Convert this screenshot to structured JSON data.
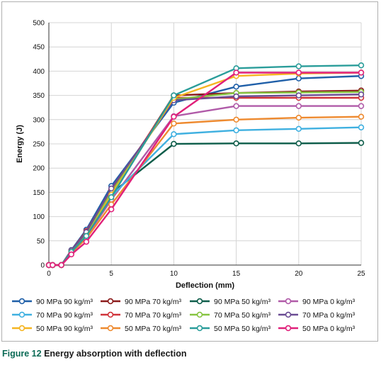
{
  "caption": {
    "label": "Figure 12",
    "text": "Energy absorption with deflection"
  },
  "chart_data": {
    "type": "line",
    "xlabel": "Deflection (mm)",
    "ylabel": "Energy (J)",
    "xlim": [
      0,
      25
    ],
    "ylim": [
      0,
      500
    ],
    "xticks": [
      0,
      5,
      10,
      15,
      20,
      25
    ],
    "yticks": [
      0,
      50,
      100,
      150,
      200,
      250,
      300,
      350,
      400,
      450,
      500
    ],
    "grid": true,
    "legend_position": "bottom",
    "series": [
      {
        "name": "90 MPa 90 kg/m³",
        "color": "#1f5fa8",
        "x": [
          0,
          0.3,
          1,
          1.8,
          3,
          5,
          10,
          15,
          20,
          25
        ],
        "y": [
          0,
          0,
          0,
          31,
          73,
          163,
          335,
          368,
          385,
          390
        ]
      },
      {
        "name": "90 MPa 70 kg/m³",
        "color": "#8b1a1a",
        "x": [
          0,
          0.3,
          1,
          1.8,
          3,
          5,
          10,
          15,
          20,
          25
        ],
        "y": [
          0,
          0,
          0,
          30,
          65,
          148,
          350,
          355,
          358,
          360
        ]
      },
      {
        "name": "90 MPa 50 kg/m³",
        "color": "#0d5d4a",
        "x": [
          0,
          0.3,
          1,
          1.8,
          3,
          5,
          10,
          15,
          20,
          25
        ],
        "y": [
          0,
          0,
          0,
          29,
          67,
          148,
          250,
          251,
          251,
          252
        ]
      },
      {
        "name": "90 MPa 0 kg/m³",
        "color": "#b05aa8",
        "x": [
          0,
          0.3,
          1,
          1.8,
          3,
          5,
          10,
          15,
          20,
          25
        ],
        "y": [
          0,
          0,
          0,
          26,
          58,
          135,
          307,
          328,
          328,
          328
        ]
      },
      {
        "name": "70 MPa 90 kg/m³",
        "color": "#3fb0e0",
        "x": [
          0,
          0.3,
          1,
          1.8,
          3,
          5,
          10,
          15,
          20,
          25
        ],
        "y": [
          0,
          0,
          0,
          28,
          62,
          142,
          270,
          278,
          281,
          284
        ]
      },
      {
        "name": "70 MPa 70 kg/m³",
        "color": "#d0343a",
        "x": [
          0,
          0.3,
          1,
          1.8,
          3,
          5,
          10,
          15,
          20,
          25
        ],
        "y": [
          0,
          0,
          0,
          30,
          70,
          155,
          345,
          345,
          345,
          345
        ]
      },
      {
        "name": "70 MPa 50 kg/m³",
        "color": "#86c440",
        "x": [
          0,
          0.3,
          1,
          1.8,
          3,
          5,
          10,
          15,
          20,
          25
        ],
        "y": [
          0,
          0,
          0,
          29,
          64,
          150,
          342,
          355,
          356,
          357
        ]
      },
      {
        "name": "70 MPa 0 kg/m³",
        "color": "#6a4c93",
        "x": [
          0,
          0.3,
          1,
          1.8,
          3,
          5,
          10,
          15,
          20,
          25
        ],
        "y": [
          0,
          0,
          0,
          30,
          68,
          158,
          340,
          348,
          350,
          352
        ]
      },
      {
        "name": "50 MPa 90 kg/m³",
        "color": "#f5b521",
        "x": [
          0,
          0.3,
          1,
          1.8,
          3,
          5,
          10,
          15,
          20,
          25
        ],
        "y": [
          0,
          0,
          0,
          27,
          60,
          145,
          345,
          390,
          395,
          397
        ]
      },
      {
        "name": "50 MPa 70 kg/m³",
        "color": "#ee8a2f",
        "x": [
          0,
          0.3,
          1,
          1.8,
          3,
          5,
          10,
          15,
          20,
          25
        ],
        "y": [
          0,
          0,
          0,
          25,
          55,
          125,
          292,
          300,
          304,
          306
        ]
      },
      {
        "name": "50 MPa 50 kg/m³",
        "color": "#2a9d9a",
        "x": [
          0,
          0.3,
          1,
          1.8,
          3,
          5,
          10,
          15,
          20,
          25
        ],
        "y": [
          0,
          0,
          0,
          27,
          60,
          140,
          350,
          406,
          410,
          412
        ]
      },
      {
        "name": "50 MPa 0 kg/m³",
        "color": "#e0207a",
        "x": [
          0,
          0.3,
          1,
          1.8,
          3,
          5,
          10,
          15,
          20,
          25
        ],
        "y": [
          0,
          0,
          0,
          22,
          48,
          115,
          306,
          397,
          397,
          397
        ]
      }
    ]
  }
}
